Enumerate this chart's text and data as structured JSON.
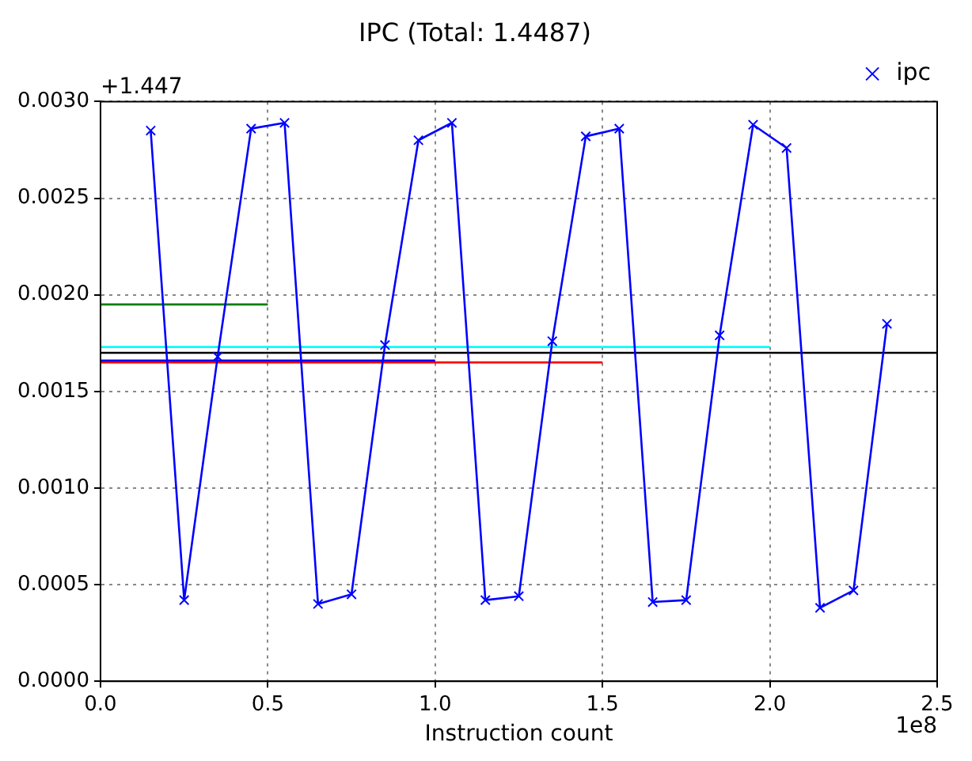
{
  "chart_data": {
    "type": "line",
    "title": "IPC (Total: 1.4487)",
    "xlabel": "Instruction count",
    "annotations": [
      "+1.447",
      "1e8"
    ],
    "x": [
      0.15,
      0.25,
      0.35,
      0.45,
      0.55,
      0.65,
      0.75,
      0.85,
      0.95,
      1.05,
      1.15,
      1.25,
      1.35,
      1.45,
      1.55,
      1.65,
      1.75,
      1.85,
      1.95,
      2.05,
      2.15,
      2.25,
      2.35
    ],
    "series": [
      {
        "name": "ipc",
        "color": "#0000ff",
        "marker": "cross",
        "values": [
          0.00285,
          0.00042,
          0.00168,
          0.00286,
          0.00289,
          0.0004,
          0.00045,
          0.00174,
          0.0028,
          0.00289,
          0.00042,
          0.00044,
          0.00176,
          0.00282,
          0.00286,
          0.00041,
          0.00042,
          0.00179,
          0.00288,
          0.00276,
          0.00038,
          0.00047,
          0.00185
        ]
      },
      {
        "color": "#008000",
        "marker": "none",
        "x": [
          0,
          0.5
        ],
        "values": [
          0.00195,
          0.00195
        ]
      },
      {
        "color": "#0000ff",
        "marker": "none",
        "x": [
          0,
          1.0
        ],
        "values": [
          0.00166,
          0.00166
        ]
      },
      {
        "color": "#00ffff",
        "marker": "none",
        "x": [
          0,
          2.0
        ],
        "values": [
          0.00173,
          0.00173
        ]
      },
      {
        "color": "#ff0000",
        "marker": "none",
        "x": [
          0,
          1.5
        ],
        "values": [
          0.00165,
          0.00165
        ]
      },
      {
        "color": "#000000",
        "marker": "none",
        "x": [
          0,
          2.5
        ],
        "values": [
          0.0017,
          0.0017
        ]
      }
    ],
    "xlim": [
      0,
      2.5
    ],
    "xticks": [
      {
        "value": 0,
        "label": "0.0"
      },
      0.5,
      {
        "value": 1,
        "label": "1.0"
      },
      1.5,
      {
        "value": 2,
        "label": "2.0"
      },
      2.5
    ],
    "ylim": [
      0,
      0.003
    ],
    "yticks": [
      {
        "value": 0,
        "label": "0.0000"
      },
      0.0005,
      {
        "value": 0.001,
        "label": "0.0010"
      },
      0.0015,
      {
        "value": 0.002,
        "label": "0.0020"
      },
      0.0025,
      {
        "value": 0.003,
        "label": "0.0030"
      }
    ],
    "grid": true,
    "legend": "top right",
    "line_style": "solid"
  }
}
